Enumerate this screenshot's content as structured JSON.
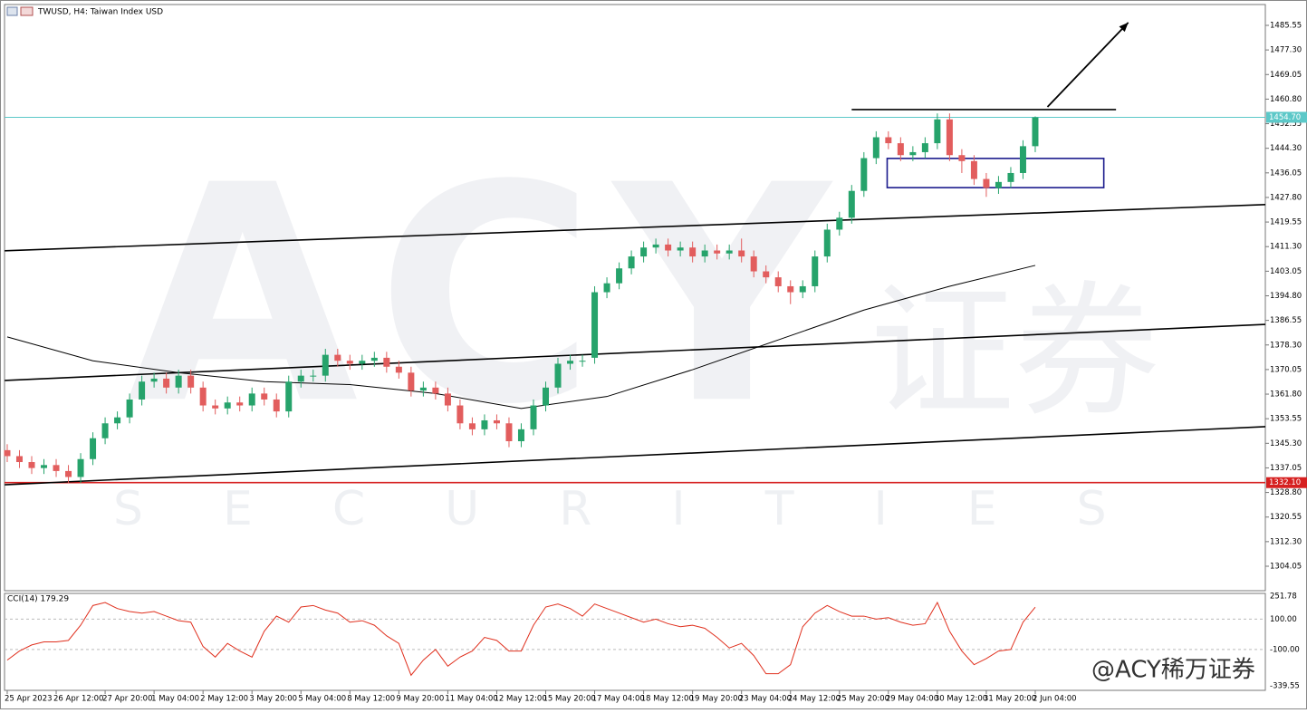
{
  "chart_data": {
    "type": "candlestick",
    "title": "TWUSD, H4:  Taiwan Index USD",
    "up_color": "#26a36b",
    "down_color": "#e25d5d",
    "xlim": [
      -0.22,
      102.8
    ],
    "ylim": [
      1295.84,
      1492.54
    ],
    "yticks": [
      1485.55,
      {
        "value": 1477.3,
        "label": "1477.30"
      },
      1469.05,
      {
        "value": 1460.8,
        "label": "1460.80"
      },
      1452.55,
      {
        "value": 1444.3,
        "label": "1444.30"
      },
      1436.05,
      {
        "value": 1427.8,
        "label": "1427.80"
      },
      1419.55,
      {
        "value": 1411.3,
        "label": "1411.30"
      },
      1403.05,
      {
        "value": 1394.8,
        "label": "1394.80"
      },
      1386.55,
      {
        "value": 1378.3,
        "label": "1378.30"
      },
      1370.05,
      {
        "value": 1361.8,
        "label": "1361.80"
      },
      1353.55,
      {
        "value": 1345.3,
        "label": "1345.30"
      },
      1337.05,
      {
        "value": 1328.8,
        "label": "1328.80"
      },
      1320.55,
      {
        "value": 1312.3,
        "label": "1312.30"
      },
      1304.05
    ],
    "xticks": [
      {
        "value": 0,
        "label": "25 Apr 2023"
      },
      {
        "value": 4,
        "label": "26 Apr 12:00"
      },
      {
        "value": 8,
        "label": "27 Apr 20:00"
      },
      {
        "value": 12,
        "label": "1 May 04:00"
      },
      {
        "value": 16,
        "label": "2 May 12:00"
      },
      {
        "value": 20,
        "label": "3 May 20:00"
      },
      {
        "value": 24,
        "label": "5 May 04:00"
      },
      {
        "value": 28,
        "label": "8 May 12:00"
      },
      {
        "value": 32,
        "label": "9 May 20:00"
      },
      {
        "value": 36,
        "label": "11 May 04:00"
      },
      {
        "value": 40,
        "label": "12 May 12:00"
      },
      {
        "value": 44,
        "label": "15 May 20:00"
      },
      {
        "value": 48,
        "label": "17 May 04:00"
      },
      {
        "value": 52,
        "label": "18 May 12:00"
      },
      {
        "value": 56,
        "label": "19 May 20:00"
      },
      {
        "value": 60,
        "label": "23 May 04:00"
      },
      {
        "value": 64,
        "label": "24 May 12:00"
      },
      {
        "value": 68,
        "label": "25 May 20:00"
      },
      {
        "value": 72,
        "label": "29 May 04:00"
      },
      {
        "value": 76,
        "label": "30 May 12:00"
      },
      {
        "value": 80,
        "label": "31 May 20:00"
      },
      {
        "value": 84,
        "label": "2 Jun 04:00"
      }
    ],
    "open": [
      1343,
      1341,
      1339,
      1337,
      1338,
      1336,
      1334,
      1340,
      1347,
      1352,
      1354,
      1360,
      1366,
      1367,
      1364,
      1368,
      1364,
      1358,
      1357,
      1359,
      1358,
      1362,
      1360,
      1356,
      1366,
      1368,
      1368,
      1375,
      1373,
      1372,
      1373,
      1374,
      1371,
      1369,
      1363,
      1364,
      1362,
      1358,
      1352,
      1350,
      1353,
      1352,
      1346,
      1350,
      1358,
      1364,
      1372,
      1373,
      1374,
      1396,
      1399,
      1404,
      1408,
      1411,
      1412,
      1410,
      1411,
      1408,
      1410,
      1409,
      1410,
      1408,
      1403,
      1401,
      1398,
      1396,
      1398,
      1408,
      1417,
      1421,
      1430,
      1441,
      1448,
      1446,
      1442,
      1443,
      1446,
      1454,
      1442,
      1440,
      1434,
      1431,
      1433,
      1436,
      1445
    ],
    "high": [
      1345,
      1343,
      1341,
      1340,
      1340,
      1338,
      1342,
      1349,
      1354,
      1356,
      1362,
      1368,
      1369,
      1369,
      1370,
      1370,
      1366,
      1360,
      1361,
      1361,
      1364,
      1364,
      1362,
      1368,
      1370,
      1370,
      1377,
      1377,
      1375,
      1375,
      1376,
      1376,
      1373,
      1371,
      1366,
      1366,
      1364,
      1360,
      1354,
      1355,
      1355,
      1354,
      1352,
      1360,
      1366,
      1374,
      1375,
      1375,
      1398,
      1401,
      1406,
      1410,
      1413,
      1414,
      1414,
      1413,
      1413,
      1412,
      1412,
      1412,
      1414,
      1410,
      1405,
      1403,
      1400,
      1400,
      1410,
      1419,
      1423,
      1432,
      1443,
      1450,
      1450,
      1448,
      1445,
      1448,
      1456,
      1456,
      1444,
      1442,
      1436,
      1435,
      1438,
      1447,
      1455
    ],
    "low": [
      1339,
      1337,
      1335,
      1335,
      1334,
      1332,
      1332,
      1338,
      1345,
      1350,
      1352,
      1358,
      1364,
      1362,
      1362,
      1362,
      1356,
      1355,
      1355,
      1356,
      1356,
      1358,
      1354,
      1354,
      1364,
      1366,
      1366,
      1371,
      1370,
      1370,
      1371,
      1369,
      1367,
      1361,
      1361,
      1360,
      1356,
      1350,
      1348,
      1348,
      1350,
      1344,
      1344,
      1348,
      1356,
      1362,
      1370,
      1371,
      1372,
      1394,
      1397,
      1402,
      1406,
      1409,
      1408,
      1408,
      1406,
      1406,
      1407,
      1407,
      1406,
      1401,
      1399,
      1396,
      1392,
      1394,
      1396,
      1406,
      1415,
      1419,
      1428,
      1439,
      1444,
      1440,
      1440,
      1441,
      1444,
      1440,
      1436,
      1432,
      1428,
      1429,
      1431,
      1434,
      1443
    ],
    "close": [
      1341,
      1339,
      1337,
      1338,
      1336,
      1334,
      1340,
      1347,
      1352,
      1354,
      1360,
      1366,
      1367,
      1364,
      1368,
      1364,
      1358,
      1357,
      1359,
      1358,
      1362,
      1360,
      1356,
      1366,
      1368,
      1368,
      1375,
      1373,
      1372,
      1373,
      1374,
      1371,
      1369,
      1363,
      1364,
      1362,
      1358,
      1352,
      1350,
      1353,
      1352,
      1346,
      1350,
      1358,
      1364,
      1372,
      1373,
      1373,
      1396,
      1399,
      1404,
      1408,
      1411,
      1412,
      1410,
      1411,
      1408,
      1410,
      1409,
      1410,
      1408,
      1403,
      1401,
      1398,
      1396,
      1398,
      1408,
      1417,
      1421,
      1430,
      1441,
      1448,
      1446,
      1442,
      1443,
      1446,
      1454,
      1442,
      1440,
      1434,
      1431,
      1433,
      1436,
      1445,
      1454.7
    ],
    "moving_average": {
      "color": "#000000",
      "x": [
        0,
        7,
        14,
        21,
        28,
        35,
        42,
        49,
        56,
        63,
        70,
        77,
        84
      ],
      "values": [
        1381,
        1373,
        1369,
        1366,
        1365,
        1362,
        1357,
        1361,
        1370,
        1380,
        1390,
        1398,
        1405
      ]
    },
    "trendlines": [
      {
        "x": [
          -0.2,
          102.8
        ],
        "y": [
          1409.9,
          1425.4
        ],
        "color": "#000000"
      },
      {
        "x": [
          -0.2,
          102.8
        ],
        "y": [
          1366.4,
          1385.2
        ],
        "color": "#000000"
      },
      {
        "x": [
          -0.2,
          102.8
        ],
        "y": [
          1331.4,
          1350.9
        ],
        "color": "#000000"
      },
      {
        "x": [
          69,
          90.6
        ],
        "y": [
          1457.3,
          1457.3
        ],
        "color": "#000000"
      }
    ],
    "arrow": {
      "x": [
        85,
        91.6
      ],
      "y": [
        1458.2,
        1486.5
      ],
      "color": "#000000"
    },
    "box": {
      "x": [
        71.9,
        89.6
      ],
      "y": [
        1431.1,
        1440.9
      ],
      "color": "#1a1a8c"
    },
    "hlines": [
      {
        "value": 1454.7,
        "label": "1454.70",
        "color": "#5cc8c8"
      },
      {
        "value": 1332.1,
        "label": "1332.10",
        "color": "#d62020"
      }
    ],
    "watermark": {
      "logo": "ACY",
      "cn": "证券",
      "en": "SECURITIES",
      "credit": "@ACY稀万证券"
    },
    "indicator": {
      "title": "CCI(14) 179.29",
      "color": "#e0301e",
      "ylim": [
        -369.4,
        269.7
      ],
      "yticks": [
        251.78,
        {
          "value": 100,
          "label": "100.00"
        },
        {
          "value": -100,
          "label": "-100.00"
        },
        -339.55
      ],
      "levels": [
        100,
        -100
      ],
      "values": [
        -170,
        -110,
        -70,
        -50,
        -50,
        -40,
        60,
        190,
        210,
        170,
        150,
        140,
        150,
        120,
        90,
        80,
        -80,
        -150,
        -60,
        -110,
        -150,
        20,
        120,
        80,
        180,
        190,
        160,
        140,
        80,
        90,
        60,
        -10,
        -60,
        -270,
        -170,
        -100,
        -210,
        -150,
        -110,
        -20,
        -40,
        -110,
        -110,
        60,
        180,
        200,
        170,
        120,
        200,
        170,
        140,
        110,
        80,
        100,
        70,
        50,
        60,
        40,
        -20,
        -90,
        -60,
        -140,
        -260,
        -260,
        -200,
        50,
        140,
        190,
        150,
        120,
        120,
        100,
        110,
        80,
        60,
        70,
        210,
        20,
        -110,
        -200,
        -160,
        -110,
        -100,
        80,
        179.29
      ]
    }
  }
}
